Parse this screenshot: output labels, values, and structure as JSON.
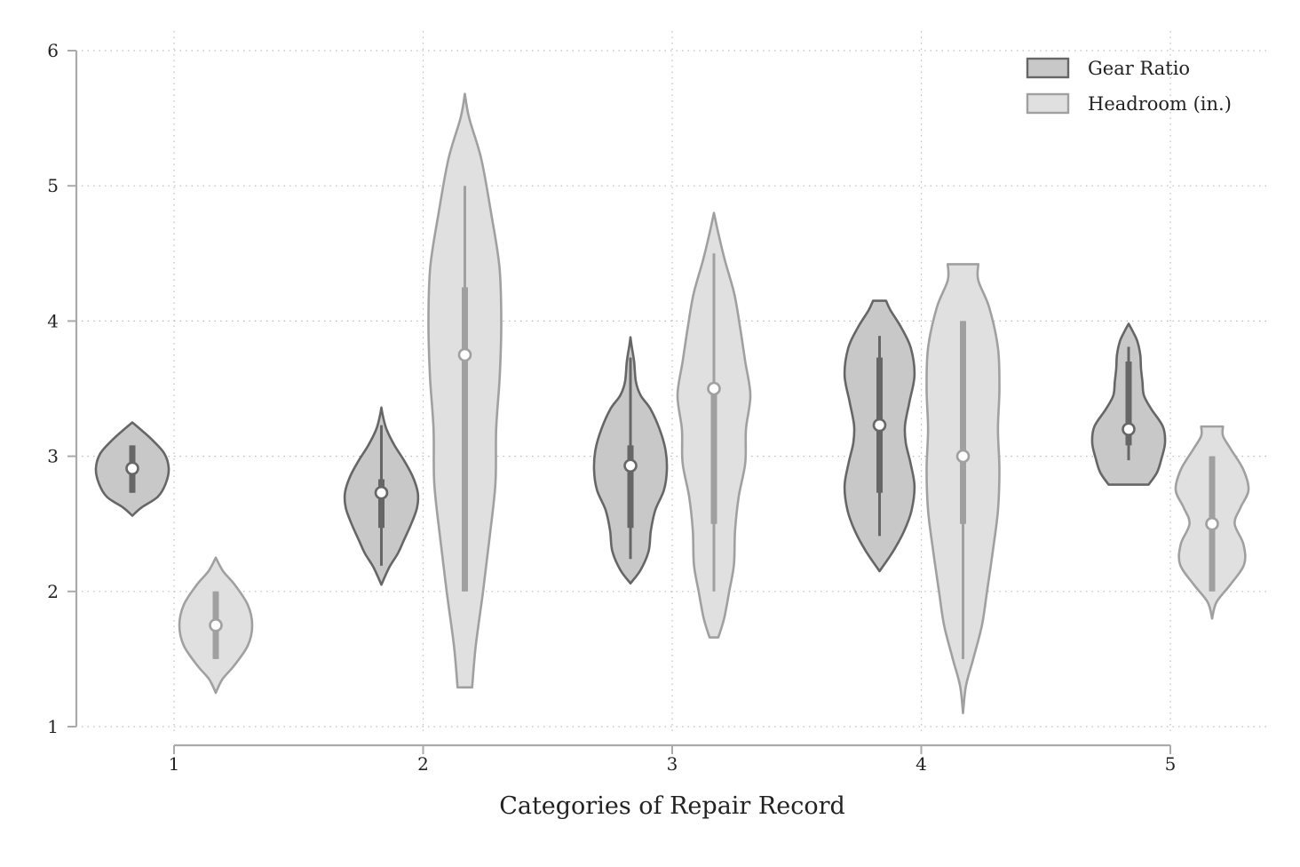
{
  "chart_data": {
    "type": "violin",
    "title": "",
    "xlabel": "Categories of Repair Record",
    "ylabel": "",
    "categories": [
      "1",
      "2",
      "3",
      "4",
      "5"
    ],
    "y_ticks": [
      "1",
      "2",
      "3",
      "4",
      "5",
      "6"
    ],
    "ylim": [
      1,
      6
    ],
    "grid": true,
    "legend_position": "top-right",
    "series": [
      {
        "name": "Gear Ratio",
        "fill": "#c8c8c8",
        "stroke": "#666666",
        "stats": [
          {
            "category": "1",
            "min": 2.73,
            "q1": 2.73,
            "median": 2.91,
            "q3": 3.08,
            "max": 3.08,
            "kde_low": 2.56,
            "kde_high": 3.25,
            "profile": [
              [
                2.56,
                0.0
              ],
              [
                2.62,
                0.25
              ],
              [
                2.7,
                0.7
              ],
              [
                2.8,
                0.92
              ],
              [
                2.91,
                1.0
              ],
              [
                3.02,
                0.88
              ],
              [
                3.12,
                0.55
              ],
              [
                3.2,
                0.22
              ],
              [
                3.25,
                0.0
              ]
            ]
          },
          {
            "category": "2",
            "min": 2.19,
            "q1": 2.47,
            "median": 2.73,
            "q3": 2.83,
            "max": 3.23,
            "kde_low": 2.05,
            "kde_high": 3.36,
            "profile": [
              [
                2.05,
                0.0
              ],
              [
                2.18,
                0.22
              ],
              [
                2.28,
                0.45
              ],
              [
                2.38,
                0.62
              ],
              [
                2.5,
                0.82
              ],
              [
                2.62,
                0.98
              ],
              [
                2.73,
                1.0
              ],
              [
                2.85,
                0.86
              ],
              [
                2.97,
                0.62
              ],
              [
                3.08,
                0.36
              ],
              [
                3.2,
                0.14
              ],
              [
                3.3,
                0.04
              ],
              [
                3.36,
                0.0
              ]
            ]
          },
          {
            "category": "3",
            "min": 2.24,
            "q1": 2.47,
            "median": 2.93,
            "q3": 3.08,
            "max": 3.73,
            "kde_low": 2.06,
            "kde_high": 3.88,
            "profile": [
              [
                2.06,
                0.0
              ],
              [
                2.16,
                0.28
              ],
              [
                2.3,
                0.5
              ],
              [
                2.45,
                0.56
              ],
              [
                2.6,
                0.68
              ],
              [
                2.75,
                0.92
              ],
              [
                2.9,
                1.0
              ],
              [
                3.05,
                0.96
              ],
              [
                3.2,
                0.8
              ],
              [
                3.35,
                0.55
              ],
              [
                3.45,
                0.28
              ],
              [
                3.55,
                0.15
              ],
              [
                3.7,
                0.1
              ],
              [
                3.82,
                0.03
              ],
              [
                3.88,
                0.0
              ]
            ]
          },
          {
            "category": "4",
            "min": 2.41,
            "q1": 2.73,
            "median": 3.23,
            "q3": 3.73,
            "max": 3.89,
            "kde_low": 2.15,
            "kde_high": 4.15,
            "profile": [
              [
                2.15,
                0.0
              ],
              [
                2.3,
                0.38
              ],
              [
                2.45,
                0.68
              ],
              [
                2.6,
                0.88
              ],
              [
                2.78,
                0.96
              ],
              [
                2.95,
                0.85
              ],
              [
                3.1,
                0.72
              ],
              [
                3.23,
                0.7
              ],
              [
                3.4,
                0.82
              ],
              [
                3.6,
                0.96
              ],
              [
                3.8,
                0.86
              ],
              [
                3.95,
                0.6
              ],
              [
                4.08,
                0.3
              ],
              [
                4.15,
                0.18
              ]
            ]
          },
          {
            "category": "5",
            "min": 2.97,
            "q1": 3.08,
            "median": 3.2,
            "q3": 3.7,
            "max": 3.81,
            "kde_low": 2.79,
            "kde_high": 3.98,
            "profile": [
              [
                2.79,
                0.55
              ],
              [
                2.88,
                0.78
              ],
              [
                2.98,
                0.9
              ],
              [
                3.1,
                1.0
              ],
              [
                3.22,
                0.94
              ],
              [
                3.35,
                0.62
              ],
              [
                3.45,
                0.42
              ],
              [
                3.55,
                0.38
              ],
              [
                3.65,
                0.34
              ],
              [
                3.75,
                0.32
              ],
              [
                3.85,
                0.24
              ],
              [
                3.92,
                0.12
              ],
              [
                3.98,
                0.0
              ]
            ]
          }
        ]
      },
      {
        "name": "Headroom (in.)",
        "fill": "#e0e0e0",
        "stroke": "#a0a0a0",
        "stats": [
          {
            "category": "1",
            "min": 1.5,
            "q1": 1.5,
            "median": 1.75,
            "q3": 2.0,
            "max": 2.0,
            "kde_low": 1.25,
            "kde_high": 2.25,
            "profile": [
              [
                1.25,
                0.0
              ],
              [
                1.35,
                0.18
              ],
              [
                1.45,
                0.5
              ],
              [
                1.6,
                0.88
              ],
              [
                1.75,
                1.0
              ],
              [
                1.9,
                0.88
              ],
              [
                2.05,
                0.52
              ],
              [
                2.15,
                0.2
              ],
              [
                2.25,
                0.0
              ]
            ]
          },
          {
            "category": "2",
            "min": 2.0,
            "q1": 2.0,
            "median": 3.75,
            "q3": 4.25,
            "max": 5.0,
            "kde_low": 1.29,
            "kde_high": 5.68,
            "profile": [
              [
                1.29,
                0.2
              ],
              [
                1.6,
                0.3
              ],
              [
                2.0,
                0.5
              ],
              [
                2.4,
                0.68
              ],
              [
                2.8,
                0.84
              ],
              [
                3.2,
                0.86
              ],
              [
                3.6,
                0.96
              ],
              [
                4.0,
                1.0
              ],
              [
                4.4,
                0.95
              ],
              [
                4.8,
                0.72
              ],
              [
                5.2,
                0.45
              ],
              [
                5.5,
                0.12
              ],
              [
                5.68,
                0.0
              ]
            ]
          },
          {
            "category": "3",
            "min": 2.0,
            "q1": 2.5,
            "median": 3.5,
            "q3": 3.5,
            "max": 4.5,
            "kde_low": 1.66,
            "kde_high": 4.8,
            "profile": [
              [
                1.66,
                0.12
              ],
              [
                1.8,
                0.28
              ],
              [
                2.0,
                0.42
              ],
              [
                2.2,
                0.55
              ],
              [
                2.45,
                0.58
              ],
              [
                2.7,
                0.68
              ],
              [
                2.95,
                0.86
              ],
              [
                3.2,
                0.88
              ],
              [
                3.45,
                1.0
              ],
              [
                3.7,
                0.86
              ],
              [
                3.95,
                0.72
              ],
              [
                4.2,
                0.56
              ],
              [
                4.45,
                0.3
              ],
              [
                4.65,
                0.12
              ],
              [
                4.8,
                0.0
              ]
            ]
          },
          {
            "category": "4",
            "min": 1.5,
            "q1": 2.5,
            "median": 3.0,
            "q3": 4.0,
            "max": 4.0,
            "kde_low": 1.1,
            "kde_high": 4.42,
            "profile": [
              [
                1.1,
                0.0
              ],
              [
                1.3,
                0.08
              ],
              [
                1.5,
                0.28
              ],
              [
                1.75,
                0.52
              ],
              [
                2.0,
                0.66
              ],
              [
                2.3,
                0.82
              ],
              [
                2.6,
                0.96
              ],
              [
                2.9,
                1.0
              ],
              [
                3.2,
                0.96
              ],
              [
                3.5,
                1.0
              ],
              [
                3.8,
                0.96
              ],
              [
                4.1,
                0.72
              ],
              [
                4.3,
                0.42
              ],
              [
                4.42,
                0.42
              ]
            ]
          },
          {
            "category": "5",
            "min": 2.0,
            "q1": 2.0,
            "median": 2.5,
            "q3": 3.0,
            "max": 3.0,
            "kde_low": 1.8,
            "kde_high": 3.22,
            "profile": [
              [
                1.8,
                0.0
              ],
              [
                1.92,
                0.12
              ],
              [
                2.05,
                0.5
              ],
              [
                2.2,
                0.88
              ],
              [
                2.35,
                0.86
              ],
              [
                2.5,
                0.62
              ],
              [
                2.62,
                0.78
              ],
              [
                2.75,
                1.0
              ],
              [
                2.9,
                0.86
              ],
              [
                3.05,
                0.52
              ],
              [
                3.15,
                0.3
              ],
              [
                3.22,
                0.3
              ]
            ]
          }
        ]
      }
    ]
  }
}
